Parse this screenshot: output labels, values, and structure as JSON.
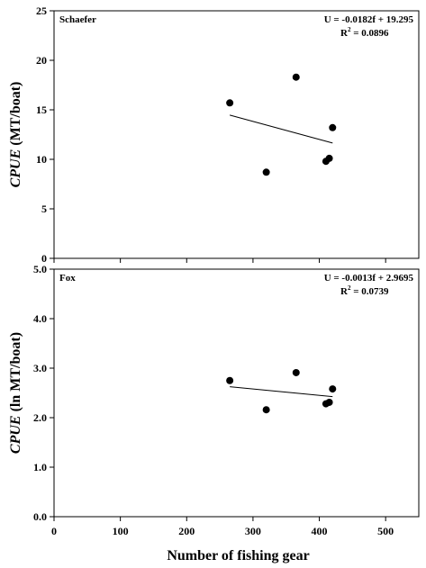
{
  "chart_data": [
    {
      "type": "scatter",
      "panel_label": "Schaefer",
      "ylabel_italic": "CPUE",
      "ylabel_rest": " (MT/boat)",
      "xlim": [
        0,
        550
      ],
      "ylim": [
        0,
        25
      ],
      "yticks": [
        0,
        5,
        10,
        15,
        20,
        25
      ],
      "ytick_labels": [
        "0",
        "5",
        "10",
        "15",
        "20",
        "25"
      ],
      "grid": false,
      "points": [
        {
          "x": 265,
          "y": 15.7
        },
        {
          "x": 320,
          "y": 8.7
        },
        {
          "x": 365,
          "y": 18.3
        },
        {
          "x": 410,
          "y": 9.8
        },
        {
          "x": 415,
          "y": 10.1
        },
        {
          "x": 420,
          "y": 13.2
        }
      ],
      "trendline": {
        "x": [
          265,
          420
        ],
        "y": [
          14.47,
          11.65
        ]
      },
      "equation": "U = -0.0182f + 19.295",
      "r2_label": "R",
      "r2_sup": "2",
      "r2_value": " = 0.0896"
    },
    {
      "type": "scatter",
      "panel_label": "Fox",
      "ylabel_italic": "CPUE",
      "ylabel_rest": " (ln MT/boat)",
      "xlim": [
        0,
        550
      ],
      "ylim": [
        0,
        5
      ],
      "yticks": [
        0,
        1,
        2,
        3,
        4,
        5
      ],
      "ytick_labels": [
        "0.0",
        "1.0",
        "2.0",
        "3.0",
        "4.0",
        "5.0"
      ],
      "grid": false,
      "points": [
        {
          "x": 265,
          "y": 2.75
        },
        {
          "x": 320,
          "y": 2.16
        },
        {
          "x": 365,
          "y": 2.91
        },
        {
          "x": 410,
          "y": 2.28
        },
        {
          "x": 415,
          "y": 2.31
        },
        {
          "x": 420,
          "y": 2.58
        }
      ],
      "trendline": {
        "x": [
          265,
          420
        ],
        "y": [
          2.625,
          2.424
        ]
      },
      "equation": "U = -0.0013f + 2.9695",
      "r2_label": "R",
      "r2_sup": "2",
      "r2_value": " = 0.0739"
    }
  ],
  "shared_x": {
    "xlabel": "Number of fishing gear",
    "xticks": [
      0,
      100,
      200,
      300,
      400,
      500
    ],
    "xtick_labels": [
      "0",
      "100",
      "200",
      "300",
      "400",
      "500"
    ]
  }
}
